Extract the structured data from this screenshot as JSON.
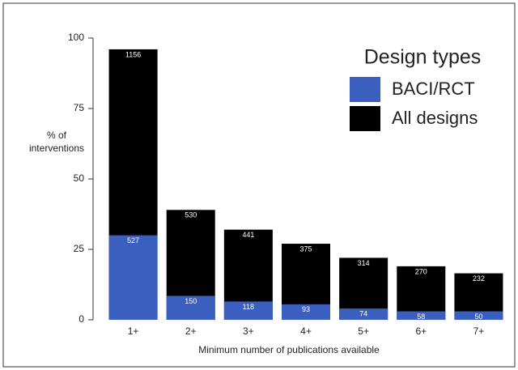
{
  "chart_data": {
    "type": "bar",
    "x_label": "Minimum number of publications available",
    "y_label": [
      "% of",
      "interventions"
    ],
    "categories": [
      "1+",
      "2+",
      "3+",
      "4+",
      "5+",
      "6+",
      "7+"
    ],
    "series": [
      {
        "name": "All designs",
        "color": "#000000",
        "values": [
          96,
          39,
          32,
          27,
          22,
          19,
          16.5
        ],
        "labels": [
          "1156",
          "530",
          "441",
          "375",
          "314",
          "270",
          "232"
        ]
      },
      {
        "name": "BACI/RCT",
        "color": "#3a5fbf",
        "values": [
          30,
          8.5,
          6.5,
          5.5,
          4,
          3,
          3
        ],
        "labels": [
          "527",
          "150",
          "118",
          "93",
          "74",
          "58",
          "50"
        ]
      }
    ],
    "overlap": true,
    "legend_title": "Design types",
    "legend_order": [
      1,
      0
    ],
    "ylim": [
      0,
      100
    ],
    "yticks": [
      0,
      25,
      50,
      75,
      100
    ],
    "grid": false
  }
}
